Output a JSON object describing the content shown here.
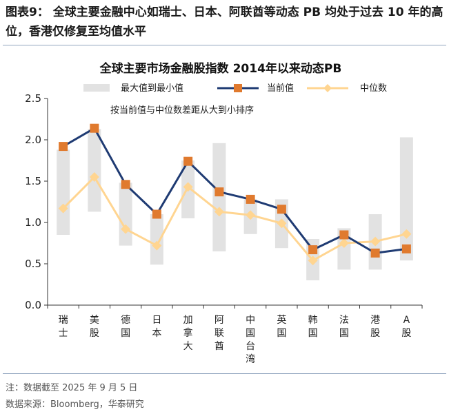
{
  "figure_heading": "图表9： 全球主要金融中心如瑞士、日本、阿联酋等动态 PB 均处于过去 10 年的高位，香港仅修复至均值水平",
  "note": "注：数据截至 2025 年 9 月 5 日",
  "source": "数据来源：Bloomberg，华泰研究",
  "colors": {
    "range": "#e2e2e2",
    "current": "#1f3b73",
    "current_marker": "#e07a2e",
    "median": "#ffd591",
    "median_marker": "#ffd591"
  },
  "chart_data": {
    "type": "bar",
    "title": "全球主要市场金融股指数 2014年以来动态PB",
    "annotation": "按当前值与中位数差距从大到小排序",
    "xlabel": "",
    "ylabel": "",
    "ylim": [
      0,
      2.5
    ],
    "yticks": [
      "0.0",
      "0.5",
      "1.0",
      "1.5",
      "2.0",
      "2.5"
    ],
    "categories": [
      "瑞士",
      "美股",
      "德国",
      "日本",
      "加拿大",
      "阿联酋",
      "中国台湾",
      "英国",
      "韩国",
      "法国",
      "港股",
      "A股"
    ],
    "category_labels": [
      [
        "瑞",
        "士"
      ],
      [
        "美",
        "股"
      ],
      [
        "德",
        "国"
      ],
      [
        "日",
        "本"
      ],
      [
        "加",
        "拿",
        "大"
      ],
      [
        "阿",
        "联",
        "酋"
      ],
      [
        "中",
        "国",
        "台",
        "湾"
      ],
      [
        "英",
        "国"
      ],
      [
        "韩",
        "国"
      ],
      [
        "法",
        "国"
      ],
      [
        "港",
        "股"
      ],
      [
        "A",
        "股"
      ]
    ],
    "series": [
      {
        "name": "最大值到最小值",
        "kind": "range",
        "min": [
          0.85,
          1.13,
          0.72,
          0.49,
          1.05,
          0.65,
          0.86,
          0.69,
          0.3,
          0.43,
          0.43,
          0.54
        ],
        "max": [
          1.88,
          2.13,
          1.48,
          1.1,
          1.75,
          1.96,
          1.28,
          1.28,
          0.8,
          0.93,
          1.1,
          2.03
        ]
      },
      {
        "name": "当前值",
        "kind": "line-marker",
        "values": [
          1.92,
          2.14,
          1.46,
          1.1,
          1.74,
          1.37,
          1.28,
          1.16,
          0.67,
          0.85,
          0.63,
          0.68
        ]
      },
      {
        "name": "中位数",
        "kind": "line-marker",
        "values": [
          1.17,
          1.55,
          0.92,
          0.72,
          1.43,
          1.13,
          1.09,
          0.99,
          0.54,
          0.75,
          0.77,
          0.86
        ]
      }
    ]
  }
}
